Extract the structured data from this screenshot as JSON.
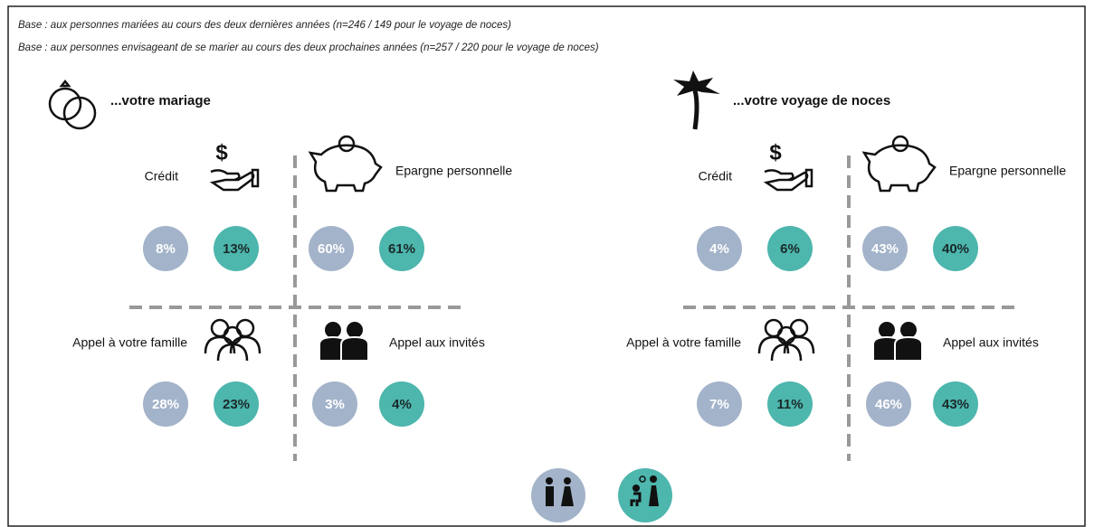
{
  "bases": [
    "Base : aux personnes mariées au cours des deux dernières années (n=246 / 149 pour le voyage de noces)",
    "Base : aux personnes envisageant de se marier au cours des deux prochaines années (n=257 / 220 pour le voyage de noces)"
  ],
  "panels": [
    {
      "title": "...votre mariage",
      "quadrants": [
        {
          "label": "Crédit",
          "values": [
            "8%",
            "13%"
          ]
        },
        {
          "label": "Epargne personnelle",
          "values": [
            "60%",
            "61%"
          ]
        },
        {
          "label": "Appel à votre famille",
          "values": [
            "28%",
            "23%"
          ]
        },
        {
          "label": "Appel aux invités",
          "values": [
            "3%",
            "4%"
          ]
        }
      ]
    },
    {
      "title": "...votre voyage de noces",
      "quadrants": [
        {
          "label": "Crédit",
          "values": [
            "4%",
            "6%"
          ]
        },
        {
          "label": "Epargne personnelle",
          "values": [
            "43%",
            "40%"
          ]
        },
        {
          "label": "Appel à votre famille",
          "values": [
            "7%",
            "11%"
          ]
        },
        {
          "label": "Appel aux invités",
          "values": [
            "46%",
            "43%"
          ]
        }
      ]
    }
  ]
}
